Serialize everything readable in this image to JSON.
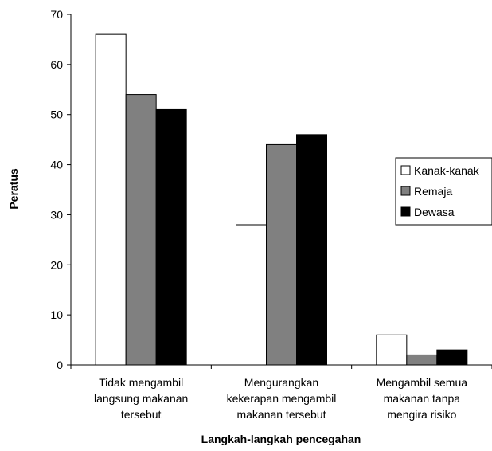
{
  "chart_data": {
    "type": "bar",
    "title": "",
    "xlabel": "Langkah-langkah pencegahan",
    "ylabel": "Peratus",
    "ylim": [
      0,
      70
    ],
    "yticks": [
      0,
      10,
      20,
      30,
      40,
      50,
      60,
      70
    ],
    "grid": false,
    "legend_position": "right",
    "categories": [
      [
        "Tidak mengambil",
        "langsung makanan",
        "tersebut"
      ],
      [
        "Mengurangkan",
        "kekerapan mengambil",
        "makanan tersebut"
      ],
      [
        "Mengambil semua",
        "makanan tanpa",
        "mengira risiko"
      ]
    ],
    "series": [
      {
        "name": "Kanak-kanak",
        "values": [
          66,
          28,
          6
        ],
        "color": "#ffffff"
      },
      {
        "name": "Remaja",
        "values": [
          54,
          44,
          2
        ],
        "color": "#808080"
      },
      {
        "name": "Dewasa",
        "values": [
          51,
          46,
          3
        ],
        "color": "#000000"
      }
    ]
  }
}
